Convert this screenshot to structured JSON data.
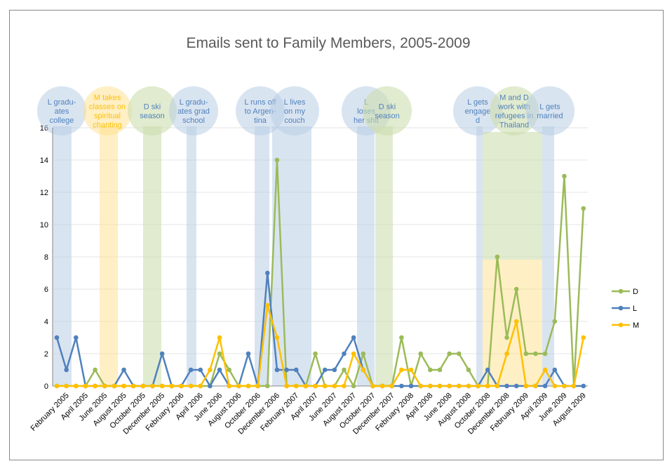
{
  "chart_data": {
    "type": "line",
    "title": "Emails sent to Family Members, 2005-2009",
    "categories": [
      null,
      "February 2005",
      null,
      "April 2005",
      null,
      "June 2005",
      null,
      "August 2005",
      null,
      "October 2005",
      null,
      "December 2005",
      null,
      "February 2006",
      null,
      "April 2006",
      null,
      "June 2006",
      null,
      "August 2006",
      null,
      "October 2006",
      null,
      "December 2006",
      null,
      "February 2007",
      null,
      "April 2007",
      null,
      "June 2007",
      null,
      "August 2007",
      null,
      "October 2007",
      null,
      "December 2007",
      null,
      "February 2008",
      null,
      "April 2008",
      null,
      "June 2008",
      null,
      "August 2008",
      null,
      "October 2008",
      null,
      "December 2008",
      null,
      "February 2009",
      null,
      "April 2009",
      null,
      "June 2009",
      null,
      "August 2009"
    ],
    "series": [
      {
        "name": "D",
        "color": "#9bbb59",
        "values": [
          0,
          0,
          0,
          0,
          1,
          0,
          0,
          0,
          0,
          0,
          0,
          0,
          0,
          0,
          0,
          0,
          0,
          2,
          1,
          0,
          0,
          0,
          0,
          14,
          0,
          0,
          0,
          2,
          0,
          0,
          1,
          0,
          2,
          0,
          0,
          0,
          3,
          0,
          2,
          1,
          1,
          2,
          2,
          1,
          0,
          0,
          8,
          3,
          6,
          2,
          2,
          2,
          4,
          13,
          0,
          11
        ]
      },
      {
        "name": "L",
        "color": "#4f81bd",
        "values": [
          3,
          1,
          3,
          0,
          0,
          0,
          0,
          1,
          0,
          0,
          0,
          2,
          0,
          0,
          1,
          1,
          0,
          1,
          0,
          0,
          2,
          0,
          7,
          1,
          1,
          1,
          0,
          0,
          1,
          1,
          2,
          3,
          1,
          0,
          0,
          0,
          0,
          0,
          0,
          0,
          0,
          0,
          0,
          0,
          0,
          1,
          0,
          0,
          0,
          0,
          0,
          0,
          1,
          0,
          0,
          0
        ]
      },
      {
        "name": "M",
        "color": "#ffc000",
        "values": [
          0,
          0,
          0,
          0,
          0,
          0,
          0,
          0,
          0,
          0,
          0,
          0,
          0,
          0,
          0,
          0,
          1,
          3,
          0,
          0,
          0,
          0,
          5,
          3,
          0,
          0,
          0,
          0,
          0,
          0,
          0,
          2,
          1,
          0,
          0,
          0,
          1,
          1,
          0,
          0,
          0,
          0,
          0,
          0,
          0,
          0,
          0,
          2,
          4,
          0,
          0,
          1,
          0,
          0,
          0,
          3
        ]
      }
    ],
    "ylim": [
      0,
      16
    ],
    "yticks": [
      0,
      2,
      4,
      6,
      8,
      10,
      12,
      14,
      16
    ],
    "grid": true,
    "legend": "right",
    "annotations": [
      {
        "lines": [
          "L gradu-",
          "ates",
          "college"
        ]
      },
      {
        "lines": [
          "M takes",
          "classes on",
          "spiritual",
          "chanting"
        ]
      },
      {
        "lines": [
          "D ski",
          "season"
        ]
      },
      {
        "lines": [
          "L gradu-",
          "ates grad",
          "school"
        ]
      },
      {
        "lines": [
          "L runs off",
          "to Argen-",
          "tina"
        ]
      },
      {
        "lines": [
          "L lives",
          "on my",
          "couch"
        ]
      },
      {
        "lines": [
          "L",
          "loses",
          "her shit"
        ]
      },
      {
        "lines": [
          "D ski",
          "season"
        ]
      },
      {
        "lines": [
          "L gets",
          "engage",
          "d"
        ]
      },
      {
        "lines": [
          "M and D",
          "work with",
          "refugees in",
          "Thailand"
        ]
      },
      {
        "lines": [
          "L gets",
          "married"
        ]
      }
    ]
  }
}
